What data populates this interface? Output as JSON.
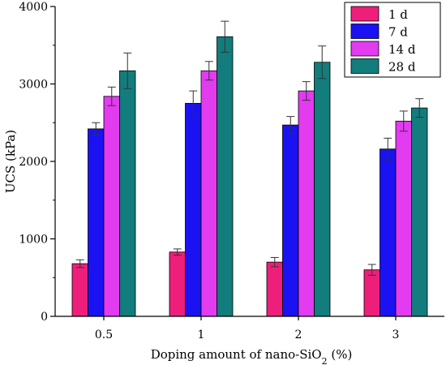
{
  "chart_data": {
    "type": "bar",
    "categories": [
      "0.5",
      "1",
      "2",
      "3"
    ],
    "series": [
      {
        "name": "1 d",
        "color": "#ee1f7a",
        "values": [
          680,
          830,
          700,
          600
        ],
        "errors": [
          50,
          40,
          60,
          70
        ]
      },
      {
        "name": "7 d",
        "color": "#1a12f2",
        "values": [
          2420,
          2750,
          2470,
          2160
        ],
        "errors": [
          80,
          160,
          110,
          140
        ]
      },
      {
        "name": "14 d",
        "color": "#e23bf0",
        "values": [
          2840,
          3170,
          2910,
          2520
        ],
        "errors": [
          120,
          120,
          120,
          130
        ]
      },
      {
        "name": "28 d",
        "color": "#137c7c",
        "values": [
          3170,
          3610,
          3280,
          2690
        ],
        "errors": [
          230,
          200,
          210,
          120
        ]
      }
    ],
    "xlabel": "Doping amount of nano-SiO",
    "xlabel_subscript": "2",
    "xlabel_suffix": " (%)",
    "ylabel": "UCS (kPa)",
    "ylim": [
      0,
      4000
    ],
    "yticks": [
      "0",
      "1000",
      "2000",
      "3000",
      "4000"
    ],
    "legend_position": "top-right",
    "grid": false
  }
}
